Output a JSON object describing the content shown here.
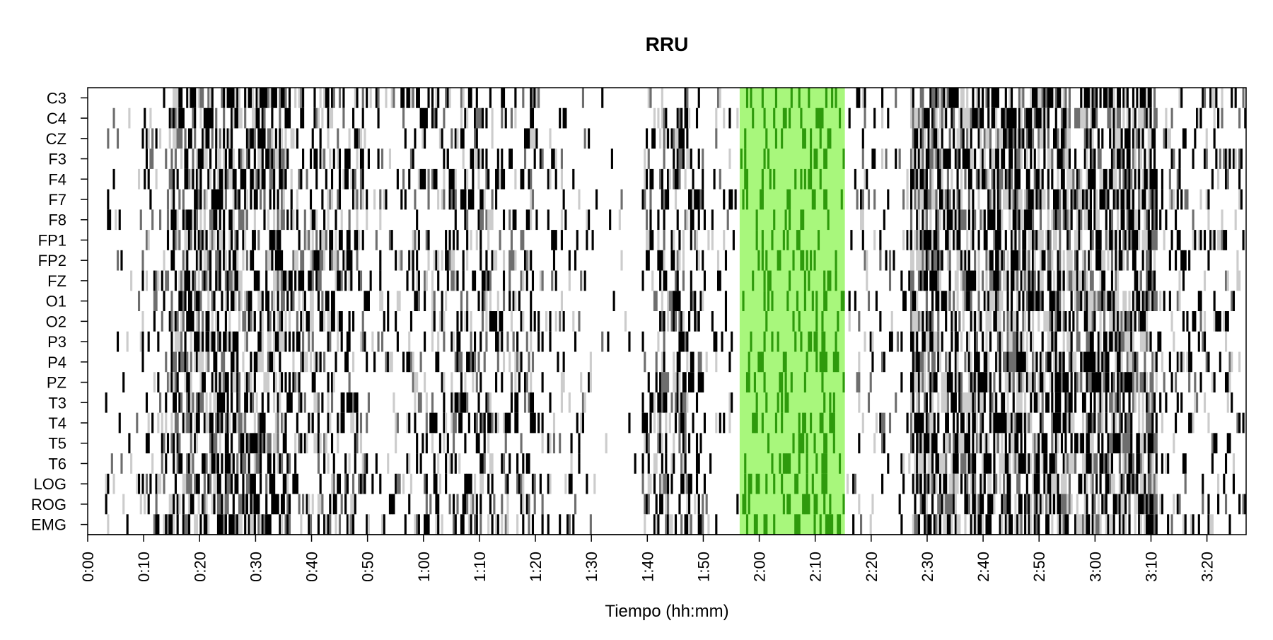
{
  "chart_data": {
    "type": "heatmap",
    "title": "RRU",
    "xlabel": "Tiempo (hh:mm)",
    "ylabel": "",
    "channels": [
      "C3",
      "C4",
      "CZ",
      "F3",
      "F4",
      "F7",
      "F8",
      "FP1",
      "FP2",
      "FZ",
      "O1",
      "O2",
      "P3",
      "P4",
      "PZ",
      "T3",
      "T4",
      "T5",
      "T6",
      "LOG",
      "ROG",
      "EMG"
    ],
    "x_ticks": [
      "0:00",
      "0:10",
      "0:20",
      "0:30",
      "0:40",
      "0:50",
      "1:00",
      "1:10",
      "1:20",
      "1:30",
      "1:40",
      "1:50",
      "2:00",
      "2:10",
      "2:20",
      "2:30",
      "2:40",
      "2:50",
      "3:00",
      "3:10",
      "3:20"
    ],
    "tick_minutes": [
      0,
      10,
      20,
      30,
      40,
      50,
      60,
      70,
      80,
      90,
      100,
      110,
      120,
      130,
      140,
      150,
      160,
      170,
      180,
      190,
      200
    ],
    "xlim_minutes": [
      0,
      207
    ],
    "highlight": {
      "start_minute": 116.5,
      "end_minute": 135.3,
      "color": "#a8f77c",
      "mark_color": "#2e9a0c"
    },
    "levels": [
      "white",
      "light-gray",
      "dark-gray",
      "black"
    ],
    "level_colors": [
      "#ffffff",
      "#cccccc",
      "#6e6e6e",
      "#000000"
    ],
    "activity_profile": [
      {
        "from": 0,
        "to": 3,
        "density": 0.0
      },
      {
        "from": 3,
        "to": 10,
        "density": 0.12
      },
      {
        "from": 10,
        "to": 15,
        "density": 0.28
      },
      {
        "from": 15,
        "to": 35,
        "density": 0.62
      },
      {
        "from": 35,
        "to": 50,
        "density": 0.45
      },
      {
        "from": 50,
        "to": 57,
        "density": 0.18
      },
      {
        "from": 57,
        "to": 80,
        "density": 0.38
      },
      {
        "from": 80,
        "to": 90,
        "density": 0.15
      },
      {
        "from": 90,
        "to": 99,
        "density": 0.03
      },
      {
        "from": 99,
        "to": 110,
        "density": 0.42
      },
      {
        "from": 110,
        "to": 116.5,
        "density": 0.12
      },
      {
        "from": 116.5,
        "to": 135.3,
        "density": 0.45
      },
      {
        "from": 135.3,
        "to": 147,
        "density": 0.15
      },
      {
        "from": 147,
        "to": 191,
        "density": 0.7
      },
      {
        "from": 191,
        "to": 207,
        "density": 0.22
      }
    ]
  }
}
